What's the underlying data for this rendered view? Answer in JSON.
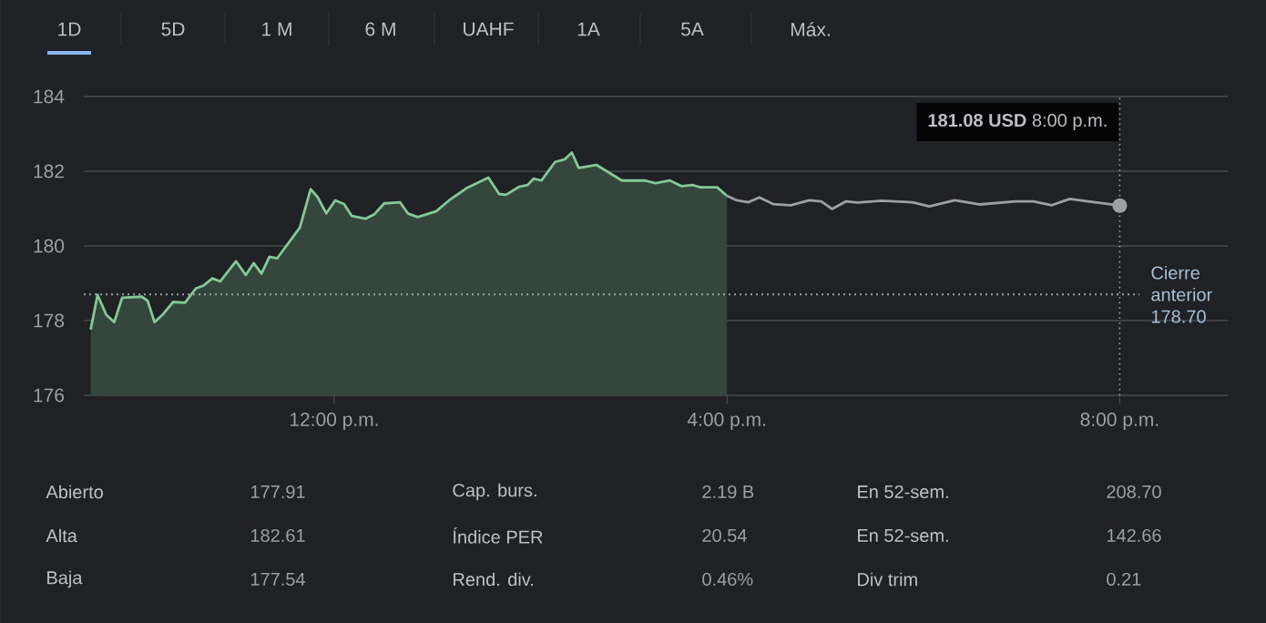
{
  "chart_data": {
    "type": "area",
    "series": [
      {
        "color": "#81c995",
        "x": [
          9.52,
          9.59,
          9.68,
          9.76,
          9.84,
          10.04,
          10.1,
          10.17,
          10.25,
          10.36,
          10.48,
          10.59,
          10.67,
          10.76,
          10.84,
          11.0,
          11.1,
          11.18,
          11.26,
          11.34,
          11.42,
          11.58,
          11.65,
          11.76,
          11.83,
          11.92,
          12.01,
          12.1,
          12.18,
          12.32,
          12.41,
          12.51,
          12.67,
          12.75,
          12.85,
          13.04,
          13.17,
          13.35,
          13.57,
          13.68,
          13.75,
          13.88,
          13.97,
          14.03,
          14.11,
          14.25,
          14.35,
          14.42,
          14.49,
          14.67,
          14.93,
          15.17,
          15.27,
          15.42,
          15.54,
          15.65,
          15.73,
          15.9,
          16.0
        ],
        "values": [
          177.76,
          178.69,
          178.15,
          177.96,
          178.61,
          178.64,
          178.53,
          177.96,
          178.15,
          178.5,
          178.48,
          178.86,
          178.94,
          179.13,
          179.05,
          179.59,
          179.22,
          179.54,
          179.26,
          179.71,
          179.67,
          180.24,
          180.49,
          181.52,
          181.31,
          180.87,
          181.22,
          181.12,
          180.8,
          180.73,
          180.85,
          181.14,
          181.17,
          180.87,
          180.77,
          180.93,
          181.22,
          181.55,
          181.83,
          181.39,
          181.37,
          181.58,
          181.63,
          181.8,
          181.75,
          182.25,
          182.32,
          182.5,
          182.09,
          182.17,
          181.75,
          181.75,
          181.68,
          181.75,
          181.6,
          181.63,
          181.57,
          181.57,
          181.34
        ]
      },
      {
        "type": "line",
        "color": "#9aa0a6",
        "x": [
          16.0,
          16.1,
          16.22,
          16.33,
          16.47,
          16.65,
          16.84,
          16.96,
          17.07,
          17.21,
          17.33,
          17.58,
          17.89,
          18.06,
          18.32,
          18.57,
          18.94,
          19.12,
          19.31,
          19.49,
          19.68,
          20.0
        ],
        "values": [
          181.34,
          181.22,
          181.17,
          181.3,
          181.12,
          181.09,
          181.22,
          181.19,
          180.99,
          181.19,
          181.16,
          181.21,
          181.17,
          181.06,
          181.22,
          181.11,
          181.19,
          181.19,
          181.09,
          181.26,
          181.19,
          181.08
        ]
      }
    ],
    "xlim": [
      9.45,
      21.1
    ],
    "ylim": [
      176,
      184
    ],
    "xticks": [
      {
        "value": 12,
        "label": "12:00 p.m."
      },
      {
        "value": 16,
        "label": "4:00 p.m."
      },
      {
        "value": 20,
        "label": "8:00 p.m."
      }
    ],
    "yticks": [
      176,
      178,
      180,
      182,
      184
    ],
    "grid": "y",
    "ref_lines": [
      {
        "axis": "y",
        "value": 178.7,
        "label": "Cierre anterior 178.70",
        "line_style": "dotted",
        "color": "#9aa0a6"
      },
      {
        "axis": "x",
        "value": 20,
        "line_style": "dotted",
        "color": "#9aa0a6"
      }
    ],
    "annotations": [
      "1D",
      "5D",
      "1 M",
      "6 M",
      "UAHF",
      "1A",
      "5A",
      "Máx.",
      "Abierto",
      "177.91",
      "Cap. burs.",
      "2.19 B",
      "En 52-sem.",
      "208.70",
      "Alta",
      "182.61",
      "Índice PER",
      "20.54",
      "En 52-sem.",
      "142.66",
      "Baja",
      "177.54",
      "Rend. div.",
      "0.46%",
      "Div trim",
      "0.21",
      "**181.08 USD** 8:00 p.m."
    ]
  }
}
